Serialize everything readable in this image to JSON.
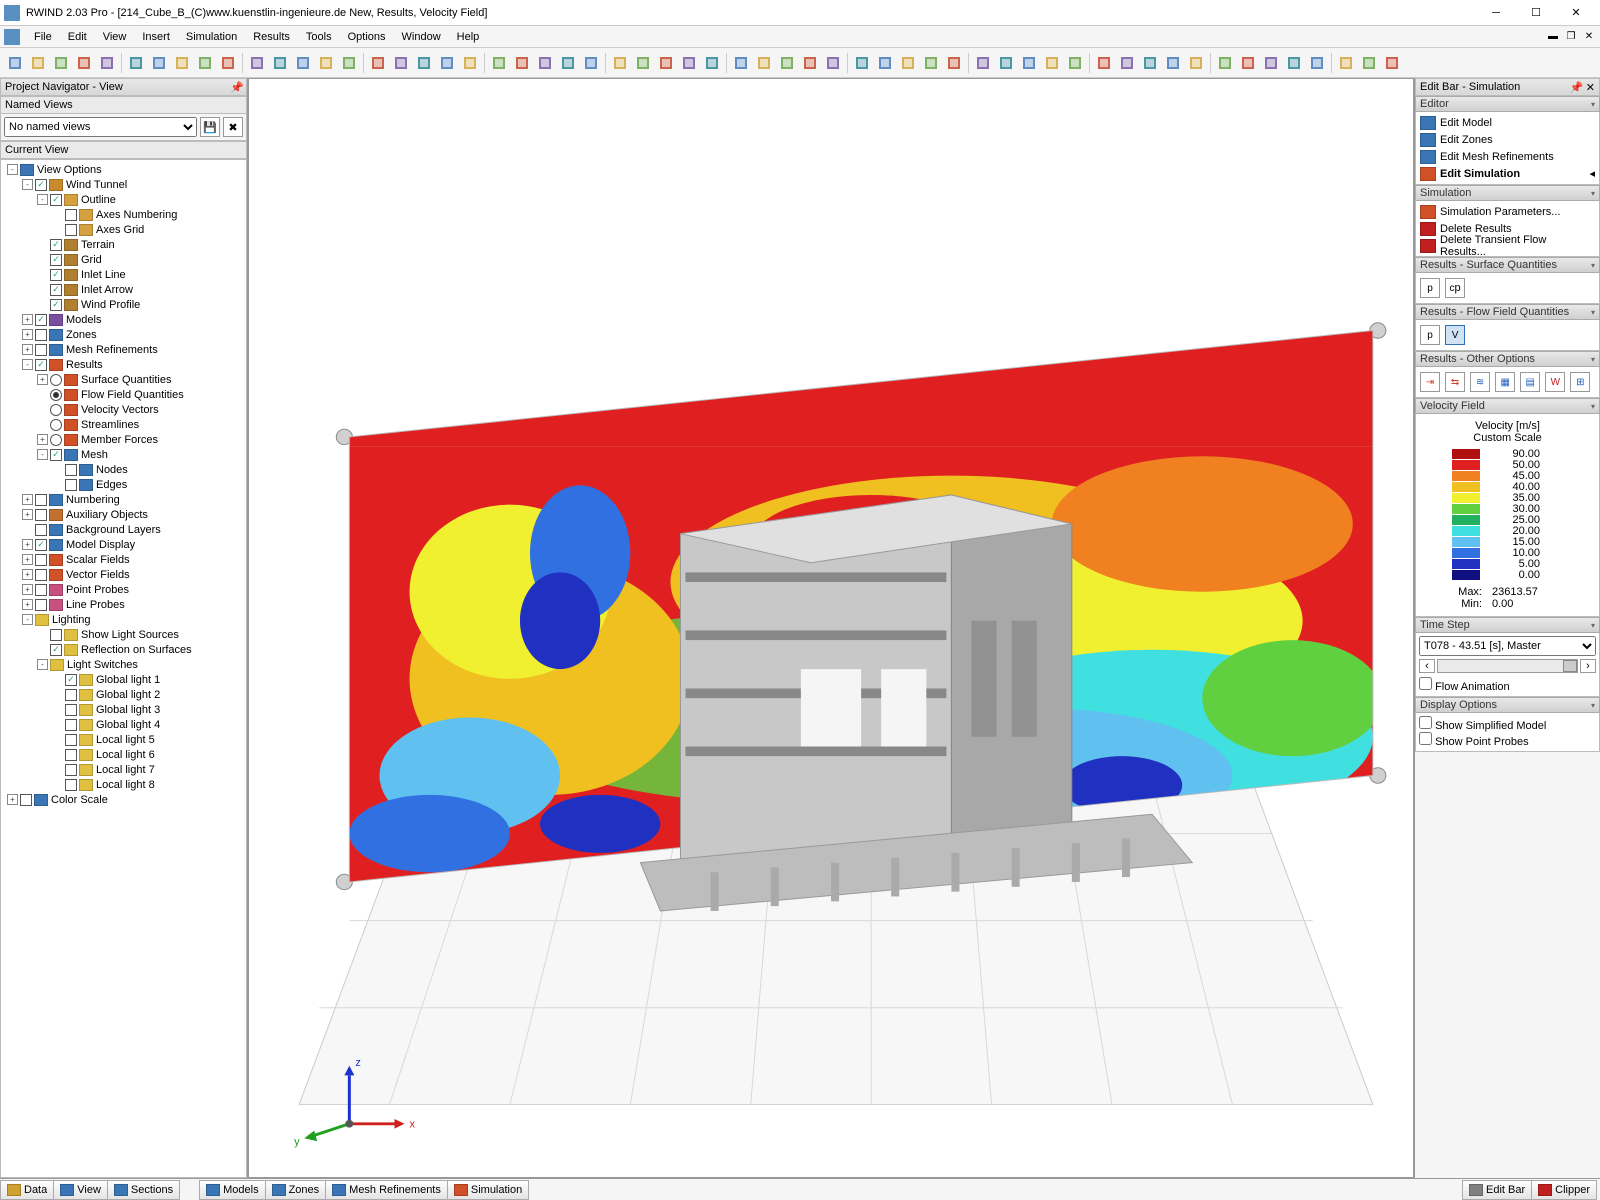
{
  "app": {
    "title": "RWIND 2.03 Pro - [214_Cube_B_(C)www.kuenstlin-ingenieure.de New, Results, Velocity Field]",
    "menus": [
      "File",
      "Edit",
      "View",
      "Insert",
      "Simulation",
      "Results",
      "Tools",
      "Options",
      "Window",
      "Help"
    ]
  },
  "leftpanel": {
    "title": "Project Navigator - View",
    "named_views_label": "Named Views",
    "named_views_value": "No named views",
    "current_view_label": "Current View",
    "tree": [
      {
        "lvl": 0,
        "exp": "-",
        "chk": null,
        "ico": "#3a75b5",
        "label": "View Options"
      },
      {
        "lvl": 1,
        "exp": "-",
        "chk": true,
        "ico": "#c98b2e",
        "label": "Wind Tunnel"
      },
      {
        "lvl": 2,
        "exp": "-",
        "chk": true,
        "ico": "#d4a040",
        "label": "Outline"
      },
      {
        "lvl": 3,
        "exp": null,
        "chk": false,
        "ico": "#d4a040",
        "label": "Axes Numbering"
      },
      {
        "lvl": 3,
        "exp": null,
        "chk": false,
        "ico": "#d4a040",
        "label": "Axes Grid"
      },
      {
        "lvl": 2,
        "exp": null,
        "chk": true,
        "ico": "#b08030",
        "label": "Terrain"
      },
      {
        "lvl": 2,
        "exp": null,
        "chk": true,
        "ico": "#b08030",
        "label": "Grid"
      },
      {
        "lvl": 2,
        "exp": null,
        "chk": true,
        "ico": "#b08030",
        "label": "Inlet Line"
      },
      {
        "lvl": 2,
        "exp": null,
        "chk": true,
        "ico": "#b08030",
        "label": "Inlet Arrow"
      },
      {
        "lvl": 2,
        "exp": null,
        "chk": true,
        "ico": "#b08030",
        "label": "Wind Profile"
      },
      {
        "lvl": 1,
        "exp": "+",
        "chk": true,
        "ico": "#7a4fa0",
        "label": "Models"
      },
      {
        "lvl": 1,
        "exp": "+",
        "chk": false,
        "ico": "#3a75b5",
        "label": "Zones"
      },
      {
        "lvl": 1,
        "exp": "+",
        "chk": false,
        "ico": "#3a75b5",
        "label": "Mesh Refinements"
      },
      {
        "lvl": 1,
        "exp": "-",
        "chk": true,
        "ico": "#d05028",
        "label": "Results"
      },
      {
        "lvl": 2,
        "exp": "+",
        "radio": false,
        "ico": "#d05028",
        "label": "Surface Quantities"
      },
      {
        "lvl": 2,
        "exp": null,
        "radio": true,
        "ico": "#d05028",
        "label": "Flow Field Quantities"
      },
      {
        "lvl": 2,
        "exp": null,
        "radio": false,
        "ico": "#d05028",
        "label": "Velocity Vectors"
      },
      {
        "lvl": 2,
        "exp": null,
        "radio": false,
        "ico": "#d05028",
        "label": "Streamlines"
      },
      {
        "lvl": 2,
        "exp": "+",
        "radio": false,
        "ico": "#d05028",
        "label": "Member Forces"
      },
      {
        "lvl": 2,
        "exp": "-",
        "chk": true,
        "ico": "#3a75b5",
        "label": "Mesh"
      },
      {
        "lvl": 3,
        "exp": null,
        "chk": false,
        "ico": "#3a75b5",
        "label": "Nodes"
      },
      {
        "lvl": 3,
        "exp": null,
        "chk": false,
        "ico": "#3a75b5",
        "label": "Edges"
      },
      {
        "lvl": 1,
        "exp": "+",
        "chk": false,
        "ico": "#3a75b5",
        "label": "Numbering"
      },
      {
        "lvl": 1,
        "exp": "+",
        "chk": false,
        "ico": "#c07030",
        "label": "Auxiliary Objects"
      },
      {
        "lvl": 1,
        "exp": null,
        "chk": false,
        "ico": "#3a75b5",
        "label": "Background Layers"
      },
      {
        "lvl": 1,
        "exp": "+",
        "chk": true,
        "ico": "#3a75b5",
        "label": "Model Display"
      },
      {
        "lvl": 1,
        "exp": "+",
        "chk": false,
        "ico": "#d05028",
        "label": "Scalar Fields"
      },
      {
        "lvl": 1,
        "exp": "+",
        "chk": false,
        "ico": "#d05028",
        "label": "Vector Fields"
      },
      {
        "lvl": 1,
        "exp": "+",
        "chk": false,
        "ico": "#c85080",
        "label": "Point Probes"
      },
      {
        "lvl": 1,
        "exp": "+",
        "chk": false,
        "ico": "#c85080",
        "label": "Line Probes"
      },
      {
        "lvl": 1,
        "exp": "-",
        "chk": null,
        "ico": "#e0c040",
        "label": "Lighting"
      },
      {
        "lvl": 2,
        "exp": null,
        "chk": false,
        "ico": "#e0c040",
        "label": "Show Light Sources"
      },
      {
        "lvl": 2,
        "exp": null,
        "chk": true,
        "ico": "#e0c040",
        "label": "Reflection on Surfaces"
      },
      {
        "lvl": 2,
        "exp": "-",
        "chk": null,
        "ico": "#e0c040",
        "label": "Light Switches"
      },
      {
        "lvl": 3,
        "exp": null,
        "chk": true,
        "ico": "#e0c040",
        "label": "Global light 1"
      },
      {
        "lvl": 3,
        "exp": null,
        "chk": false,
        "ico": "#e0c040",
        "label": "Global light 2"
      },
      {
        "lvl": 3,
        "exp": null,
        "chk": false,
        "ico": "#e0c040",
        "label": "Global light 3"
      },
      {
        "lvl": 3,
        "exp": null,
        "chk": false,
        "ico": "#e0c040",
        "label": "Global light 4"
      },
      {
        "lvl": 3,
        "exp": null,
        "chk": false,
        "ico": "#e0c040",
        "label": "Local light 5"
      },
      {
        "lvl": 3,
        "exp": null,
        "chk": false,
        "ico": "#e0c040",
        "label": "Local light 6"
      },
      {
        "lvl": 3,
        "exp": null,
        "chk": false,
        "ico": "#e0c040",
        "label": "Local light 7"
      },
      {
        "lvl": 3,
        "exp": null,
        "chk": false,
        "ico": "#e0c040",
        "label": "Local light 8"
      },
      {
        "lvl": 0,
        "exp": "+",
        "chk": false,
        "ico": "#3a75b5",
        "label": "Color Scale"
      }
    ]
  },
  "rightpanel": {
    "title": "Edit Bar - Simulation",
    "editor_label": "Editor",
    "editor_items": [
      {
        "label": "Edit Model",
        "ico": "#3a75b5"
      },
      {
        "label": "Edit Zones",
        "ico": "#3a75b5"
      },
      {
        "label": "Edit Mesh Refinements",
        "ico": "#3a75b5"
      },
      {
        "label": "Edit Simulation",
        "ico": "#d05028",
        "bold": true
      }
    ],
    "sim_label": "Simulation",
    "sim_items": [
      {
        "label": "Simulation Parameters...",
        "ico": "#d05028"
      },
      {
        "label": "Delete Results",
        "ico": "#c02020"
      },
      {
        "label": "Delete Transient Flow Results...",
        "ico": "#c02020"
      }
    ],
    "results_surf_label": "Results - Surface Quantities",
    "results_flow_label": "Results - Flow Field Quantities",
    "results_other_label": "Results - Other Options",
    "velocity_field_label": "Velocity Field",
    "timestep_label": "Time Step",
    "timestep_value": "T078 - 43.51 [s], Master",
    "flow_anim_label": "Flow Animation",
    "display_options_label": "Display Options",
    "show_simplified_label": "Show Simplified Model",
    "show_probes_label": "Show Point Probes"
  },
  "legend": {
    "title1": "Velocity [m/s]",
    "title2": "Custom Scale",
    "entries": [
      {
        "color": "#b01010",
        "value": "90.00"
      },
      {
        "color": "#e02020",
        "value": "50.00"
      },
      {
        "color": "#f08020",
        "value": "45.00"
      },
      {
        "color": "#f0c020",
        "value": "40.00"
      },
      {
        "color": "#f0f030",
        "value": "35.00"
      },
      {
        "color": "#60d040",
        "value": "30.00"
      },
      {
        "color": "#20b060",
        "value": "25.00"
      },
      {
        "color": "#40e0e0",
        "value": "20.00"
      },
      {
        "color": "#60c0f0",
        "value": "15.00"
      },
      {
        "color": "#3070e0",
        "value": "10.00"
      },
      {
        "color": "#2030c0",
        "value": "5.00"
      },
      {
        "color": "#101080",
        "value": "0.00"
      }
    ],
    "max_label": "Max:",
    "max_value": "23613.57",
    "min_label": "Min:",
    "min_value": "0.00"
  },
  "statusbar": {
    "left_tabs": [
      {
        "label": "Data",
        "ico": "#d0a030"
      },
      {
        "label": "View",
        "ico": "#3a75b5"
      },
      {
        "label": "Sections",
        "ico": "#3a75b5"
      }
    ],
    "mid_tabs": [
      {
        "label": "Models",
        "ico": "#3a75b5"
      },
      {
        "label": "Zones",
        "ico": "#3a75b5"
      },
      {
        "label": "Mesh Refinements",
        "ico": "#3a75b5"
      },
      {
        "label": "Simulation",
        "ico": "#d05028"
      }
    ],
    "right_tabs": [
      {
        "label": "Edit Bar",
        "ico": "#808080"
      },
      {
        "label": "Clipper",
        "ico": "#c02020"
      }
    ]
  },
  "viewport": {
    "axis": {
      "x": "x",
      "y": "y",
      "z": "z",
      "xcolor": "#d02020",
      "ycolor": "#20a020",
      "zcolor": "#2030d0"
    }
  },
  "toolbar_icons": 58
}
